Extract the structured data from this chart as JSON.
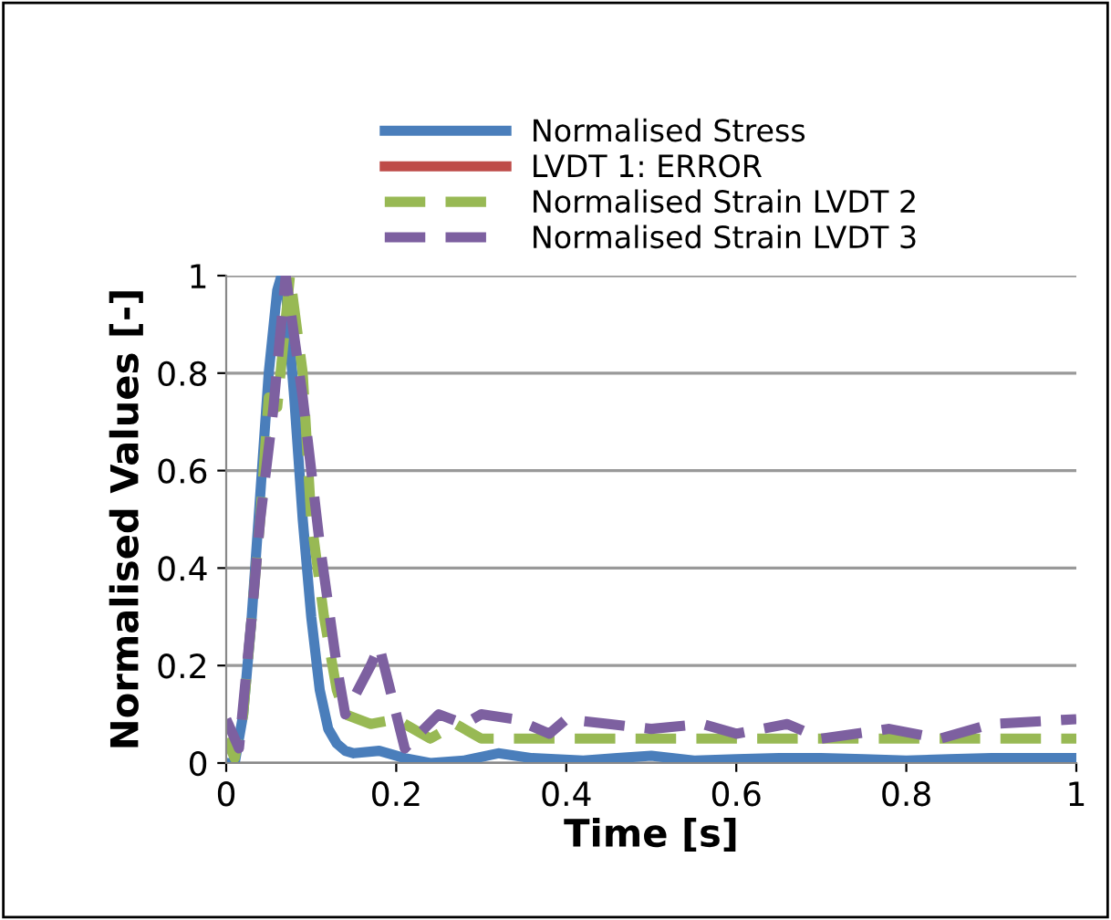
{
  "chart_data": {
    "type": "line",
    "xlabel": "Time [s]",
    "ylabel": "Normalised Values [-]",
    "xlim": [
      0,
      1
    ],
    "ylim": [
      0,
      1
    ],
    "xticks": [
      0,
      0.2,
      0.4,
      0.6,
      0.8,
      1
    ],
    "yticks": [
      0,
      0.2,
      0.4,
      0.6,
      0.8,
      1
    ],
    "grid": "y",
    "legend": "top",
    "marker": "none",
    "series": [
      {
        "name": "Normalised Stress",
        "color": "#4a7ebb",
        "line_style": "solid",
        "x": [
          0,
          0.01,
          0.02,
          0.03,
          0.04,
          0.05,
          0.06,
          0.065,
          0.07,
          0.08,
          0.09,
          0.1,
          0.11,
          0.12,
          0.13,
          0.14,
          0.15,
          0.18,
          0.21,
          0.24,
          0.28,
          0.32,
          0.36,
          0.42,
          0.46,
          0.5,
          0.55,
          0.6,
          0.65,
          0.7,
          0.75,
          0.8,
          0.85,
          0.9,
          0.95,
          1
        ],
        "values": [
          0,
          0,
          0.1,
          0.3,
          0.55,
          0.8,
          0.97,
          1,
          0.97,
          0.75,
          0.5,
          0.3,
          0.15,
          0.07,
          0.04,
          0.025,
          0.02,
          0.025,
          0.01,
          0,
          0.005,
          0.02,
          0.01,
          0.005,
          0.01,
          0.015,
          0.005,
          0.008,
          0.01,
          0.01,
          0.008,
          0.005,
          0.008,
          0.01,
          0.01,
          0.01
        ]
      },
      {
        "name": "LVDT 1: ERROR",
        "color": "#be4b48",
        "line_style": "solid"
      },
      {
        "name": "Normalised Strain LVDT 2",
        "color": "#98b954",
        "line_style": "dashed",
        "x": [
          0,
          0.01,
          0.02,
          0.03,
          0.04,
          0.05,
          0.06,
          0.075,
          0.09,
          0.1,
          0.115,
          0.13,
          0.14,
          0.17,
          0.2,
          0.24,
          0.27,
          0.3,
          0.35,
          0.4,
          0.5,
          0.6,
          0.7,
          0.8,
          0.9,
          1
        ],
        "values": [
          0.05,
          0.01,
          0.1,
          0.3,
          0.5,
          0.75,
          0.73,
          1,
          0.8,
          0.5,
          0.3,
          0.15,
          0.1,
          0.08,
          0.09,
          0.05,
          0.08,
          0.05,
          0.05,
          0.05,
          0.05,
          0.05,
          0.05,
          0.05,
          0.05,
          0.05
        ]
      },
      {
        "name": "Normalised Strain LVDT 3",
        "color": "#7d60a0",
        "line_style": "dashed",
        "x": [
          0,
          0.015,
          0.03,
          0.04,
          0.055,
          0.07,
          0.09,
          0.11,
          0.13,
          0.14,
          0.17,
          0.18,
          0.21,
          0.25,
          0.28,
          0.3,
          0.34,
          0.38,
          0.4,
          0.45,
          0.5,
          0.56,
          0.6,
          0.66,
          0.7,
          0.78,
          0.84,
          0.9,
          1
        ],
        "values": [
          0.09,
          0.03,
          0.3,
          0.5,
          0.72,
          1,
          0.75,
          0.45,
          0.2,
          0.1,
          0.2,
          0.24,
          0.03,
          0.1,
          0.08,
          0.1,
          0.09,
          0.06,
          0.09,
          0.08,
          0.07,
          0.08,
          0.06,
          0.08,
          0.05,
          0.07,
          0.05,
          0.08,
          0.09
        ]
      }
    ]
  }
}
